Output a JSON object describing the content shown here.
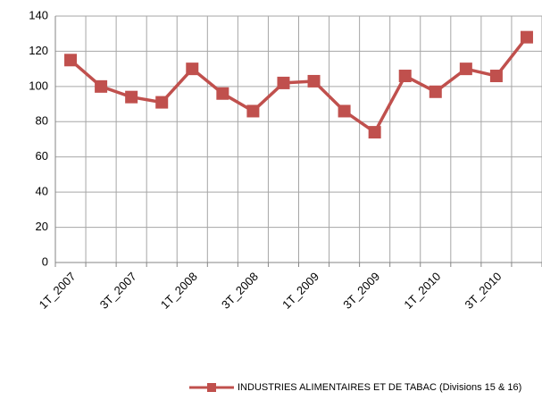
{
  "chart_data": {
    "type": "line",
    "categories": [
      "1T_2007",
      null,
      "3T_2007",
      null,
      "1T_2008",
      null,
      "3T_2008",
      null,
      "1T_2009",
      null,
      "3T_2009",
      null,
      "1T_2010",
      null,
      "3T_2010",
      null
    ],
    "series": [
      {
        "name": "INDUSTRIES ALIMENTAIRES ET DE TABAC (Divisions 15 & 16)",
        "color": "#c0504d",
        "values": [
          115,
          100,
          94,
          91,
          110,
          96,
          86,
          102,
          103,
          86,
          74,
          106,
          97,
          110,
          106,
          128
        ]
      }
    ],
    "ylim": [
      0,
      140
    ],
    "yticks": [
      0,
      20,
      40,
      60,
      80,
      100,
      120,
      140
    ],
    "grid": true,
    "legend": "bottom"
  }
}
